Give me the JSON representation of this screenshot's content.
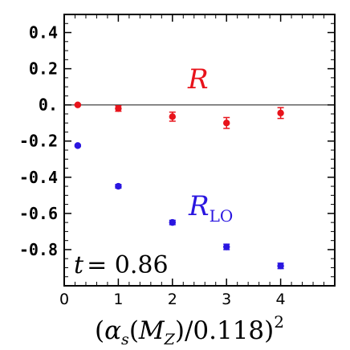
{
  "chart_data": {
    "type": "scatter",
    "xlabel": "(α_s(M_Z)/0.118)^2",
    "ylabel": "",
    "xlim": [
      0,
      5
    ],
    "ylim": [
      -1.0,
      0.5
    ],
    "x_ticks": [
      "0",
      "1",
      "2",
      "3",
      "4"
    ],
    "y_ticks": [
      "0.4",
      "0.2",
      "0.",
      "-0.2",
      "-0.4",
      "-0.6",
      "-0.8"
    ],
    "y_tick_values": [
      0.4,
      0.2,
      0.0,
      -0.2,
      -0.4,
      -0.6,
      -0.8
    ],
    "reference_line_y": 0,
    "annotation": "t = 0.86",
    "series": [
      {
        "name": "R",
        "color": "#e8131b",
        "x": [
          0.25,
          1,
          2,
          3,
          4
        ],
        "y": [
          0.0,
          -0.02,
          -0.065,
          -0.1,
          -0.045
        ],
        "err": [
          0.005,
          0.015,
          0.025,
          0.03,
          0.03
        ]
      },
      {
        "name": "R_LO",
        "color": "#2a16e0",
        "x": [
          0.25,
          1,
          2,
          3,
          4
        ],
        "y": [
          -0.225,
          -0.45,
          -0.65,
          -0.785,
          -0.89
        ],
        "err": [
          0.005,
          0.01,
          0.012,
          0.015,
          0.015
        ]
      }
    ]
  }
}
